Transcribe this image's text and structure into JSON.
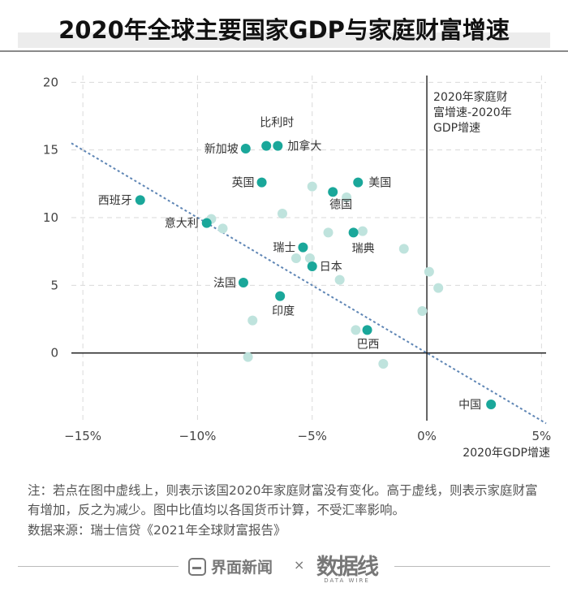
{
  "title": "2020年全球主要国家GDP与家庭财富增速",
  "chart_data": {
    "type": "scatter",
    "title": "2020年全球主要国家GDP与家庭财富增速",
    "xlabel": "2020年GDP增速",
    "ylabel": "",
    "xlim": [
      -15.5,
      5.2
    ],
    "ylim": [
      -5,
      20.5
    ],
    "xticks": [
      {
        "value": -15,
        "label": "−15%"
      },
      {
        "value": -10,
        "label": "−10%"
      },
      {
        "value": -5,
        "label": "−5%"
      },
      {
        "value": 0,
        "label": "0%"
      },
      {
        "value": 5,
        "label": "5%"
      }
    ],
    "yticks": [
      {
        "value": 0,
        "label": "0"
      },
      {
        "value": 5,
        "label": "5"
      },
      {
        "value": 10,
        "label": "10"
      },
      {
        "value": 15,
        "label": "15"
      },
      {
        "value": 20,
        "label": "20"
      }
    ],
    "y_axis_annotation": [
      "2020年家庭财",
      "富增速-2020年",
      "GDP增速"
    ],
    "reference_line": {
      "description": "y = -x",
      "x": [
        -15.5,
        5.2
      ],
      "y": [
        15.5,
        -5.2
      ]
    },
    "labeled_points": [
      {
        "name": "比利时",
        "x": -7.0,
        "y": 15.3
      },
      {
        "name": "加拿大",
        "x": -6.5,
        "y": 15.3
      },
      {
        "name": "新加坡",
        "x": -7.9,
        "y": 15.1
      },
      {
        "name": "英国",
        "x": -7.2,
        "y": 12.6
      },
      {
        "name": "美国",
        "x": -3.0,
        "y": 12.6
      },
      {
        "name": "德国",
        "x": -4.1,
        "y": 11.9
      },
      {
        "name": "西班牙",
        "x": -12.5,
        "y": 11.3
      },
      {
        "name": "意大利",
        "x": -9.6,
        "y": 9.6
      },
      {
        "name": "瑞典",
        "x": -3.2,
        "y": 8.9
      },
      {
        "name": "瑞士",
        "x": -5.4,
        "y": 7.8
      },
      {
        "name": "日本",
        "x": -5.0,
        "y": 6.4
      },
      {
        "name": "法国",
        "x": -8.0,
        "y": 5.2
      },
      {
        "name": "印度",
        "x": -6.4,
        "y": 4.2
      },
      {
        "name": "巴西",
        "x": -2.6,
        "y": 1.7
      },
      {
        "name": "中国",
        "x": 2.8,
        "y": -3.8
      }
    ],
    "unlabeled_points": [
      {
        "x": -5.0,
        "y": 12.3
      },
      {
        "x": -3.5,
        "y": 11.5
      },
      {
        "x": -6.3,
        "y": 10.3
      },
      {
        "x": -9.4,
        "y": 9.9
      },
      {
        "x": -8.9,
        "y": 9.2
      },
      {
        "x": -4.3,
        "y": 8.9
      },
      {
        "x": -2.8,
        "y": 9.0
      },
      {
        "x": -1.0,
        "y": 7.7
      },
      {
        "x": -5.7,
        "y": 7.0
      },
      {
        "x": -5.1,
        "y": 7.0
      },
      {
        "x": 0.1,
        "y": 6.0
      },
      {
        "x": -3.8,
        "y": 5.4
      },
      {
        "x": 0.5,
        "y": 4.8
      },
      {
        "x": -0.2,
        "y": 3.1
      },
      {
        "x": -7.6,
        "y": 2.4
      },
      {
        "x": -3.1,
        "y": 1.7
      },
      {
        "x": -7.8,
        "y": -0.3
      },
      {
        "x": -1.9,
        "y": -0.8
      }
    ],
    "colors": {
      "labeled": "#1aa79a",
      "unlabeled": "#bfe3dd",
      "reference_line": "#5f86b5"
    }
  },
  "note": "注：若点在图中虚线上，则表示该国2020年家庭财富没有变化。高于虚线，则表示家庭财富有增加，反之为减少。图中比值均以各国货币计算，不受汇率影响。",
  "source": "数据来源：瑞士信贷《2021年全球财富报告》",
  "footer": {
    "logo1_text": "界面新闻",
    "cross": "×",
    "logo2_text": "数据线",
    "logo2_sub": "DATA WIRE"
  }
}
